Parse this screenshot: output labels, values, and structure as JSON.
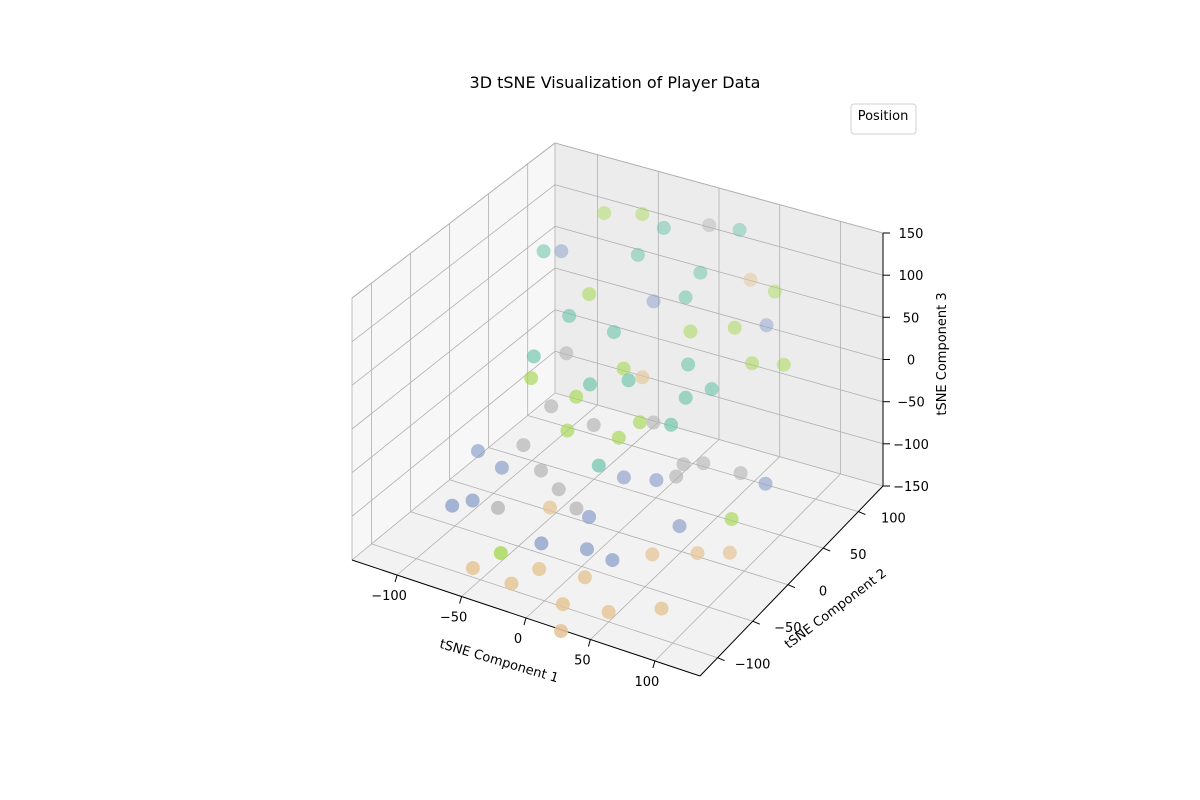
{
  "chart_data": {
    "type": "scatter",
    "projection": "3d",
    "title": "3D tSNE Visualization of Player Data",
    "xlabel": "tSNE Component 1",
    "ylabel": "tSNE Component 2",
    "zlabel": "tSNE Component 3",
    "xlim": [
      -135,
      135
    ],
    "ylim": [
      -125,
      135
    ],
    "zlim": [
      -150,
      150
    ],
    "xticks": [
      -100,
      -50,
      0,
      50,
      100
    ],
    "yticks": [
      -100,
      -50,
      0,
      50,
      100
    ],
    "zticks": [
      -150,
      -100,
      -50,
      0,
      50,
      100,
      150
    ],
    "tick_labels": {
      "x": [
        "−100",
        "−50",
        "0",
        "50",
        "100"
      ],
      "y": [
        "−100",
        "−50",
        "0",
        "50",
        "100"
      ],
      "z": [
        "−150",
        "−100",
        "−50",
        "0",
        "50",
        "100",
        "150"
      ]
    },
    "grid": true,
    "legend": {
      "title": "Position",
      "placement": "top-right",
      "entries": []
    },
    "colormap": "Set2",
    "colors": {
      "teal": "#66c2a5",
      "green": "#a6d854",
      "orange": "#e5c494",
      "blue": "#8da0cb",
      "grey": "#b3b3b3"
    },
    "points": [
      {
        "x": -100,
        "y": 65,
        "z": 95,
        "c": "teal"
      },
      {
        "x": -95,
        "y": 80,
        "z": 85,
        "c": "blue"
      },
      {
        "x": -30,
        "y": 110,
        "z": 120,
        "c": "teal"
      },
      {
        "x": 20,
        "y": 130,
        "z": 115,
        "c": "teal"
      },
      {
        "x": -5,
        "y": 130,
        "z": 110,
        "c": "grey"
      },
      {
        "x": -60,
        "y": 130,
        "z": 100,
        "c": "green"
      },
      {
        "x": -85,
        "y": 120,
        "z": 100,
        "c": "green"
      },
      {
        "x": -45,
        "y": 100,
        "z": 90,
        "c": "teal"
      },
      {
        "x": 0,
        "y": 110,
        "z": 80,
        "c": "teal"
      },
      {
        "x": 35,
        "y": 120,
        "z": 75,
        "c": "orange"
      },
      {
        "x": 55,
        "y": 120,
        "z": 70,
        "c": "green"
      },
      {
        "x": 60,
        "y": 100,
        "z": 60,
        "c": "blue"
      },
      {
        "x": -20,
        "y": 80,
        "z": 70,
        "c": "blue"
      },
      {
        "x": 0,
        "y": 90,
        "z": 75,
        "c": "teal"
      },
      {
        "x": -60,
        "y": 60,
        "z": 75,
        "c": "green"
      },
      {
        "x": -40,
        "y": 60,
        "z": 40,
        "c": "teal"
      },
      {
        "x": -70,
        "y": 50,
        "z": 50,
        "c": "teal"
      },
      {
        "x": -60,
        "y": 30,
        "z": 30,
        "c": "grey"
      },
      {
        "x": 10,
        "y": 80,
        "z": 50,
        "c": "green"
      },
      {
        "x": 20,
        "y": 60,
        "z": 40,
        "c": "teal"
      },
      {
        "x": 40,
        "y": 90,
        "z": 60,
        "c": "green"
      },
      {
        "x": 60,
        "y": 80,
        "z": 40,
        "c": "green"
      },
      {
        "x": 80,
        "y": 90,
        "z": 35,
        "c": "green"
      },
      {
        "x": 30,
        "y": 40,
        "z": 30,
        "c": "teal"
      },
      {
        "x": 45,
        "y": 50,
        "z": 40,
        "c": "teal"
      },
      {
        "x": -5,
        "y": 40,
        "z": 30,
        "c": "orange"
      },
      {
        "x": -20,
        "y": 40,
        "z": 30,
        "c": "green"
      },
      {
        "x": -10,
        "y": 30,
        "z": 35,
        "c": "teal"
      },
      {
        "x": 30,
        "y": 20,
        "z": 20,
        "c": "teal"
      },
      {
        "x": -80,
        "y": 20,
        "z": 20,
        "c": "teal"
      },
      {
        "x": -70,
        "y": 0,
        "z": 20,
        "c": "green"
      },
      {
        "x": -40,
        "y": 10,
        "z": 10,
        "c": "green"
      },
      {
        "x": -35,
        "y": 20,
        "z": 20,
        "c": "teal"
      },
      {
        "x": -20,
        "y": 0,
        "z": 0,
        "c": "grey"
      },
      {
        "x": 10,
        "y": 30,
        "z": -10,
        "c": "grey"
      },
      {
        "x": 5,
        "y": 20,
        "z": 0,
        "c": "green"
      },
      {
        "x": 0,
        "y": 0,
        "z": 0,
        "c": "green"
      },
      {
        "x": -60,
        "y": 10,
        "z": -20,
        "c": "grey"
      },
      {
        "x": -35,
        "y": -10,
        "z": -10,
        "c": "green"
      },
      {
        "x": 50,
        "y": 30,
        "z": -40,
        "c": "grey"
      },
      {
        "x": 40,
        "y": 20,
        "z": -35,
        "c": "grey"
      },
      {
        "x": 80,
        "y": 30,
        "z": -30,
        "c": "grey"
      },
      {
        "x": 100,
        "y": 30,
        "z": -30,
        "c": "blue"
      },
      {
        "x": 10,
        "y": -10,
        "z": -40,
        "c": "blue"
      },
      {
        "x": 30,
        "y": 0,
        "z": -40,
        "c": "blue"
      },
      {
        "x": 40,
        "y": 10,
        "z": -40,
        "c": "grey"
      },
      {
        "x": -10,
        "y": -10,
        "z": -40,
        "c": "teal"
      },
      {
        "x": -70,
        "y": -10,
        "z": -60,
        "c": "grey"
      },
      {
        "x": -100,
        "y": -20,
        "z": -80,
        "c": "blue"
      },
      {
        "x": -75,
        "y": -30,
        "z": -75,
        "c": "blue"
      },
      {
        "x": -50,
        "y": -20,
        "z": -70,
        "c": "grey"
      },
      {
        "x": -30,
        "y": -30,
        "z": -70,
        "c": "grey"
      },
      {
        "x": -25,
        "y": -50,
        "z": -70,
        "c": "orange"
      },
      {
        "x": -10,
        "y": -40,
        "z": -70,
        "c": "grey"
      },
      {
        "x": 0,
        "y": -40,
        "z": -75,
        "c": "blue"
      },
      {
        "x": 60,
        "y": -20,
        "z": -60,
        "c": "blue"
      },
      {
        "x": 90,
        "y": 0,
        "z": -50,
        "c": "green"
      },
      {
        "x": 100,
        "y": -20,
        "z": -70,
        "c": "orange"
      },
      {
        "x": 80,
        "y": -30,
        "z": -75,
        "c": "orange"
      },
      {
        "x": -80,
        "y": -60,
        "z": -95,
        "c": "blue"
      },
      {
        "x": -90,
        "y": -70,
        "z": -100,
        "c": "blue"
      },
      {
        "x": -60,
        "y": -60,
        "z": -90,
        "c": "grey"
      },
      {
        "x": -20,
        "y": -70,
        "z": -100,
        "c": "blue"
      },
      {
        "x": 10,
        "y": -60,
        "z": -95,
        "c": "blue"
      },
      {
        "x": 30,
        "y": -60,
        "z": -95,
        "c": "blue"
      },
      {
        "x": 50,
        "y": -40,
        "z": -95,
        "c": "orange"
      },
      {
        "x": 20,
        "y": -80,
        "z": -110,
        "c": "orange"
      },
      {
        "x": -10,
        "y": -90,
        "z": -110,
        "c": "orange"
      },
      {
        "x": -40,
        "y": -90,
        "z": -110,
        "c": "green"
      },
      {
        "x": -50,
        "y": -110,
        "z": -120,
        "c": "orange"
      },
      {
        "x": -20,
        "y": -110,
        "z": -120,
        "c": "orange"
      },
      {
        "x": 20,
        "y": -110,
        "z": -120,
        "c": "orange"
      },
      {
        "x": 50,
        "y": -100,
        "z": -120,
        "c": "orange"
      },
      {
        "x": 80,
        "y": -80,
        "z": -110,
        "c": "orange"
      },
      {
        "x": 30,
        "y": -130,
        "z": -140,
        "c": "orange"
      }
    ]
  }
}
